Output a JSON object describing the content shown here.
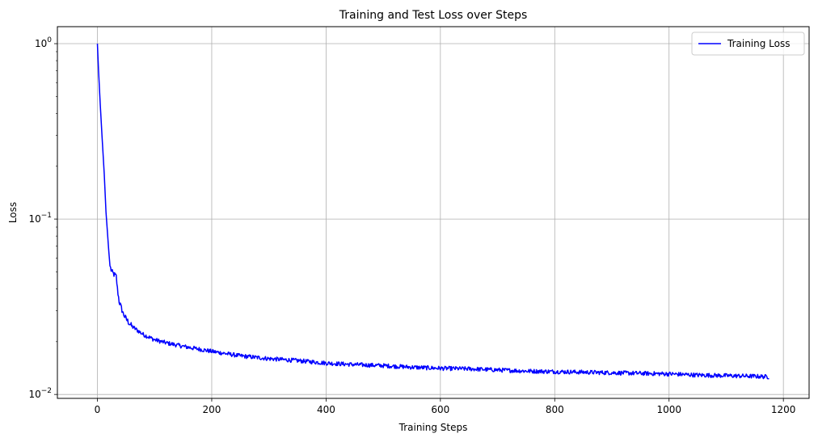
{
  "chart_data": {
    "type": "line",
    "title": "Training and Test Loss over Steps",
    "xlabel": "Training Steps",
    "ylabel": "Loss",
    "yscale": "log",
    "xlim": [
      -70,
      1245
    ],
    "ylim": [
      0.0095,
      1.25
    ],
    "grid": true,
    "legend_position": "top-right",
    "x_ticks": [
      0,
      200,
      400,
      600,
      800,
      1000,
      1200
    ],
    "y_ticks": [
      {
        "value": 1,
        "base": "10",
        "exp": "0"
      },
      {
        "value": 0.1,
        "base": "10",
        "exp": "−1"
      },
      {
        "value": 0.01,
        "base": "10",
        "exp": "−2"
      }
    ],
    "series": [
      {
        "name": "Training Loss",
        "color": "#0000ff",
        "x": [
          0,
          2,
          5,
          8,
          12,
          15,
          20,
          22,
          25,
          30,
          33,
          35,
          38,
          42,
          45,
          50,
          60,
          70,
          80,
          100,
          120,
          150,
          175,
          200,
          250,
          300,
          350,
          400,
          450,
          500,
          550,
          600,
          650,
          700,
          750,
          800,
          850,
          900,
          950,
          1000,
          1050,
          1100,
          1150,
          1175
        ],
        "y": [
          1.0,
          0.7,
          0.45,
          0.3,
          0.18,
          0.11,
          0.065,
          0.054,
          0.05,
          0.048,
          0.047,
          0.04,
          0.034,
          0.031,
          0.029,
          0.027,
          0.0245,
          0.0232,
          0.022,
          0.0205,
          0.0197,
          0.0188,
          0.0182,
          0.0176,
          0.0166,
          0.016,
          0.0156,
          0.0151,
          0.0148,
          0.0146,
          0.0143,
          0.0141,
          0.014,
          0.0138,
          0.0136,
          0.0135,
          0.0134,
          0.0133,
          0.0132,
          0.0131,
          0.0129,
          0.0128,
          0.0127,
          0.0126
        ]
      }
    ]
  }
}
